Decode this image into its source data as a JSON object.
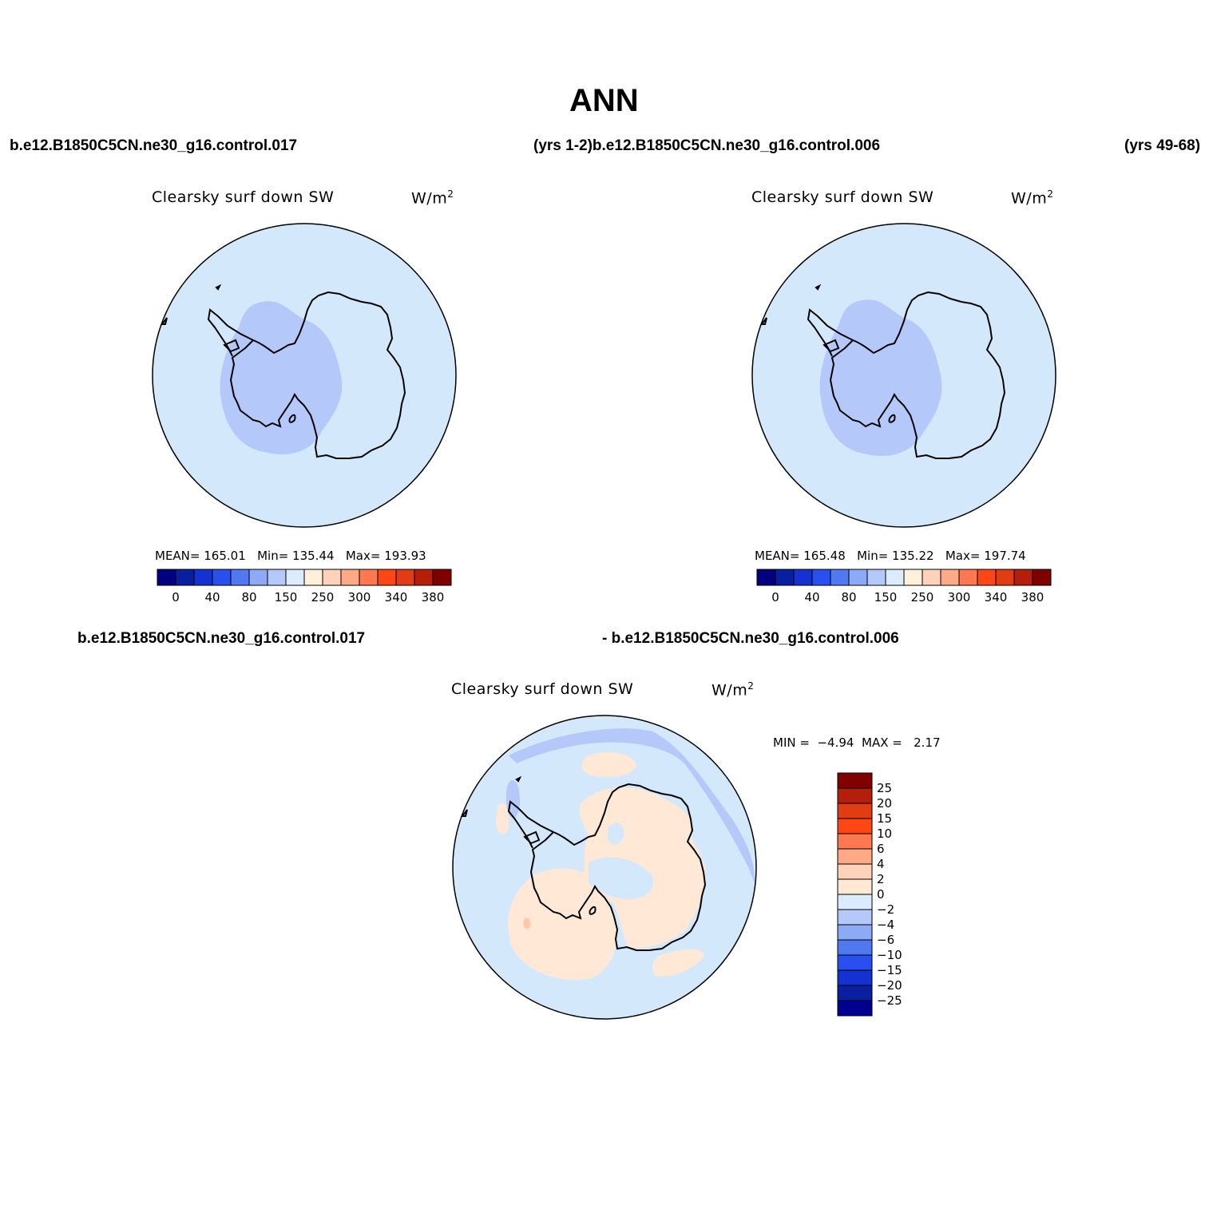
{
  "figure": {
    "season": "ANN",
    "top_left_case": "b.e12.B1850C5CN.ne30_g16.control.017",
    "top_mid_label": "(yrs 1-2)b.e12.B1850C5CN.ne30_g16.control.006",
    "top_right_label": "(yrs 49-68)",
    "diff_left_case": "b.e12.B1850C5CN.ne30_g16.control.017",
    "diff_right_case": "- b.e12.B1850C5CN.ne30_g16.control.006"
  },
  "panels": [
    {
      "field": "Clearsky surf down SW",
      "units_base": "W/m",
      "units_sup": "2",
      "stats": {
        "mean_label": "MEAN=",
        "mean": "165.01",
        "min_label": "Min=",
        "min": "135.44",
        "max_label": "Max=",
        "max": "193.93"
      }
    },
    {
      "field": "Clearsky surf down SW",
      "units_base": "W/m",
      "units_sup": "2",
      "stats": {
        "mean_label": "MEAN=",
        "mean": "165.48",
        "min_label": "Min=",
        "min": "135.22",
        "max_label": "Max=",
        "max": "197.74"
      }
    },
    {
      "field": "Clearsky surf down SW",
      "units_base": "W/m",
      "units_sup": "2",
      "stats": {
        "min_label": "MIN =",
        "min": "−4.94",
        "max_label": "MAX =",
        "max": "2.17"
      }
    }
  ],
  "abs_colorbar": {
    "colors": [
      "#000080",
      "#0a1ea0",
      "#1432d2",
      "#2850f0",
      "#5078f0",
      "#8caaf5",
      "#b4c8fa",
      "#dcebff",
      "#fff0dc",
      "#ffd2b9",
      "#ffaa87",
      "#ff7850",
      "#ff4614",
      "#e13c14",
      "#b41e0a",
      "#800000"
    ],
    "labels": [
      "0",
      "40",
      "80",
      "150",
      "250",
      "300",
      "340",
      "380"
    ]
  },
  "diff_colorbar": {
    "colors": [
      "#800000",
      "#b41e0a",
      "#e13c14",
      "#ff4614",
      "#ff7850",
      "#ffaa87",
      "#ffd2b9",
      "#ffe8d4",
      "#dcebff",
      "#b4c8fa",
      "#8caaf5",
      "#5078f0",
      "#2850f0",
      "#1432d2",
      "#0a1ea0",
      "#000090"
    ],
    "labels": [
      "25",
      "20",
      "15",
      "10",
      "6",
      "4",
      "2",
      "0",
      "−2",
      "−4",
      "−6",
      "−10",
      "−15",
      "−20",
      "−25"
    ]
  },
  "map_colors": {
    "ocean_level": "#d4e8fc",
    "low_level": "#b4c8fa",
    "neg_level": "#b4c8fa",
    "pos_level": "#ffe8d6",
    "pos2_level": "#ffc8a8",
    "coast": "#000000"
  }
}
